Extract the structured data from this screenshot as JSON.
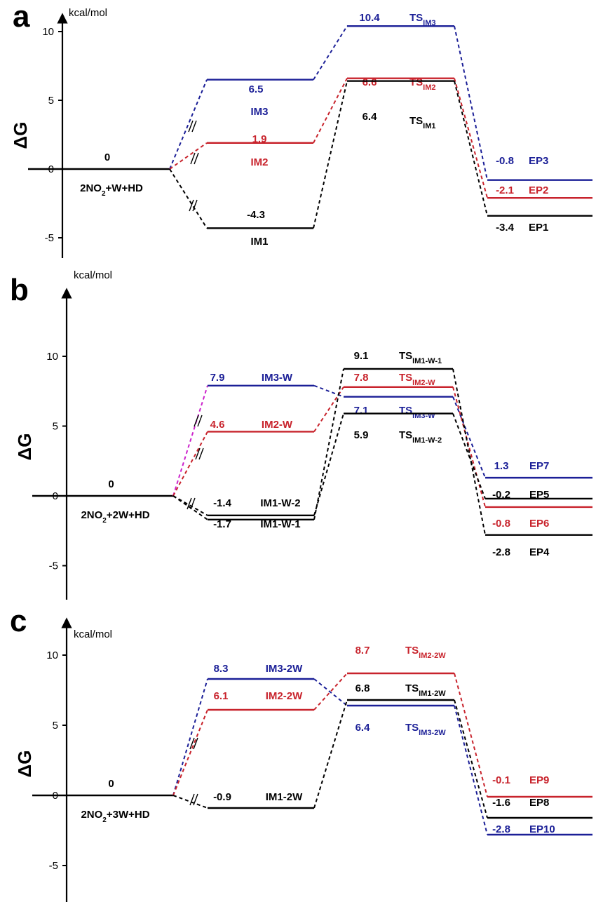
{
  "chart_data": [
    {
      "type": "energy-profile",
      "panel_label": "a",
      "unit": "kcal/mol",
      "ylabel": "ΔG",
      "yticks": [
        10,
        5,
        0,
        -5
      ],
      "ylim": [
        -6.3,
        11.2
      ],
      "colors": {
        "black": "#000000",
        "red": "#c8232c",
        "blue": "#1b1f97"
      },
      "start": {
        "value": 0,
        "value_text": "0",
        "label": "2NO2+W+HD",
        "label_main": "2NO",
        "label_sub": "2",
        "label_tail": "+W+HD"
      },
      "paths": [
        {
          "color": "blue",
          "int": {
            "value": 6.5,
            "value_text": "6.5",
            "label": "IM3"
          },
          "ts": {
            "value": 10.4,
            "value_text": "10.4",
            "label": "TSIM3",
            "label_main": "TS",
            "label_sub": "IM3"
          },
          "end": {
            "value": -0.8,
            "value_text": "-0.8",
            "label": "EP3"
          }
        },
        {
          "color": "red",
          "int": {
            "value": 1.9,
            "value_text": "1.9",
            "label": "IM2"
          },
          "ts": {
            "value": 6.6,
            "value_text": "6.6",
            "label": "TSIM2",
            "label_main": "TS",
            "label_sub": "IM2"
          },
          "end": {
            "value": -2.1,
            "value_text": "-2.1",
            "label": "EP2"
          }
        },
        {
          "color": "black",
          "int": {
            "value": -4.3,
            "value_text": "-4.3",
            "label": "IM1"
          },
          "ts": {
            "value": 6.4,
            "value_text": "6.4",
            "label": "TSIM1",
            "label_main": "TS",
            "label_sub": "IM1"
          },
          "end": {
            "value": -3.4,
            "value_text": "-3.4",
            "label": "EP1"
          }
        }
      ]
    },
    {
      "type": "energy-profile",
      "panel_label": "b",
      "unit": "kcal/mol",
      "ylabel": "ΔG",
      "yticks": [
        10,
        5,
        0,
        -5
      ],
      "ylim": [
        -7.3,
        14
      ],
      "colors": {
        "black": "#000000",
        "red": "#c8232c",
        "blue": "#1b1f97",
        "magenta": "#cc22cc"
      },
      "start": {
        "value": 0,
        "value_text": "0",
        "label": "2NO2+2W+HD",
        "label_main": "2NO",
        "label_sub": "2",
        "label_tail": "+2W+HD"
      },
      "paths": [
        {
          "color": "blue",
          "connector_color": "magenta",
          "int": {
            "value": 7.9,
            "value_text": "7.9",
            "label": "IM3-W"
          },
          "ts": {
            "value": 7.1,
            "value_text": "7.1",
            "label": "TSIM3-W",
            "label_main": "TS",
            "label_sub": "IM3-W"
          },
          "end": {
            "value": 1.3,
            "value_text": "1.3",
            "label": "EP7"
          }
        },
        {
          "color": "red",
          "int": {
            "value": 4.6,
            "value_text": "4.6",
            "label": "IM2-W"
          },
          "ts": {
            "value": 7.8,
            "value_text": "7.8",
            "label": "TSIM2-W",
            "label_main": "TS",
            "label_sub": "IM2-W"
          },
          "end": {
            "value": -0.8,
            "value_text": "-0.8",
            "label": "EP6"
          }
        },
        {
          "color": "black",
          "int": {
            "value": -1.4,
            "value_text": "-1.4",
            "label": "IM1-W-2"
          },
          "ts": {
            "value": 5.9,
            "value_text": "5.9",
            "label": "TSIM1-W-2",
            "label_main": "TS",
            "label_sub": "IM1-W-2"
          },
          "end": {
            "value": -0.2,
            "value_text": "-0.2",
            "label": "EP5"
          }
        },
        {
          "color": "black",
          "int": {
            "value": -1.7,
            "value_text": "-1.7",
            "label": "IM1-W-1"
          },
          "ts": {
            "value": 9.1,
            "value_text": "9.1",
            "label": "TSIM1-W-1",
            "label_main": "TS",
            "label_sub": "IM1-W-1"
          },
          "end": {
            "value": -2.8,
            "value_text": "-2.8",
            "label": "EP4"
          }
        }
      ]
    },
    {
      "type": "energy-profile",
      "panel_label": "c",
      "unit": "kcal/mol",
      "ylabel": "ΔG",
      "yticks": [
        10,
        5,
        0,
        -5
      ],
      "ylim": [
        -7.5,
        12
      ],
      "colors": {
        "black": "#000000",
        "red": "#c8232c",
        "blue": "#1b1f97"
      },
      "start": {
        "value": 0,
        "value_text": "0",
        "label": "2NO2+3W+HD",
        "label_main": "2NO",
        "label_sub": "2",
        "label_tail": "+3W+HD"
      },
      "paths": [
        {
          "color": "blue",
          "int": {
            "value": 8.3,
            "value_text": "8.3",
            "label": "IM3-2W"
          },
          "ts": {
            "value": 6.4,
            "value_text": "6.4",
            "label": "TSIM3-2W",
            "label_main": "TS",
            "label_sub": "IM3-2W"
          },
          "end": {
            "value": -2.8,
            "value_text": "-2.8",
            "label": "EP10"
          }
        },
        {
          "color": "red",
          "int": {
            "value": 6.1,
            "value_text": "6.1",
            "label": "IM2-2W"
          },
          "ts": {
            "value": 8.7,
            "value_text": "8.7",
            "label": "TSIM2-2W",
            "label_main": "TS",
            "label_sub": "IM2-2W"
          },
          "end": {
            "value": -0.1,
            "value_text": "-0.1",
            "label": "EP9"
          }
        },
        {
          "color": "black",
          "int": {
            "value": -0.9,
            "value_text": "-0.9",
            "label": "IM1-2W"
          },
          "ts": {
            "value": 6.8,
            "value_text": "6.8",
            "label": "TSIM1-2W",
            "label_main": "TS",
            "label_sub": "IM1-2W"
          },
          "end": {
            "value": -1.6,
            "value_text": "-1.6",
            "label": "EP8"
          }
        }
      ]
    }
  ]
}
